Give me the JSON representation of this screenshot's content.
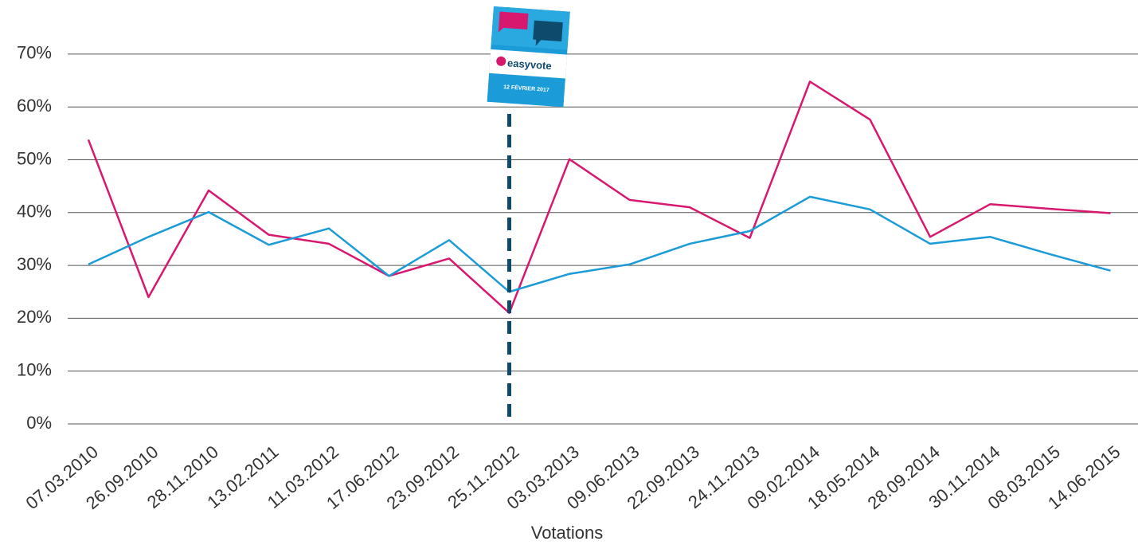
{
  "chart_data": {
    "type": "line",
    "x_label": "Votations",
    "categories": [
      "07.03.2010",
      "26.09.2010",
      "28.11.2010",
      "13.02.2011",
      "11.03.2012",
      "17.06.2012",
      "23.09.2012",
      "25.11.2012",
      "03.03.2013",
      "09.06.2013",
      "22.09.2013",
      "24.11.2013",
      "09.02.2014",
      "18.05.2014",
      "28.09.2014",
      "30.11.2014",
      "08.03.2015",
      "14.06.2015"
    ],
    "series": [
      {
        "color": "#d8176f",
        "values": [
          53.8,
          24,
          44.2,
          35.8,
          34.1,
          28,
          31.3,
          21,
          50.1,
          42.4,
          41,
          35.2,
          64.8,
          57.6,
          35.4,
          41.6,
          40.7,
          39.9
        ]
      },
      {
        "color": "#1b9bd7",
        "values": [
          30.2,
          35.4,
          40.1,
          33.9,
          37,
          28,
          34.8,
          25,
          28.4,
          30.2,
          34.1,
          36.5,
          43,
          40.6,
          34.1,
          35.4,
          32.1,
          29
        ]
      }
    ],
    "ylim": [
      0,
      80
    ],
    "yticks": [
      {
        "value": 0,
        "label": "0%"
      },
      {
        "value": 10,
        "label": "10%"
      },
      {
        "value": 20,
        "label": "20%"
      },
      {
        "value": 30,
        "label": "30%"
      },
      {
        "value": 40,
        "label": "40%"
      },
      {
        "value": 50,
        "label": "50%"
      },
      {
        "value": 60,
        "label": "60%"
      },
      {
        "value": 70,
        "label": "70%"
      }
    ],
    "grid": true,
    "marker_category": "25.11.2012",
    "marker_color": "#0e4a6c",
    "annotation": {
      "brand": "easyvote",
      "date": "12 FÉVRIER 2017"
    }
  }
}
